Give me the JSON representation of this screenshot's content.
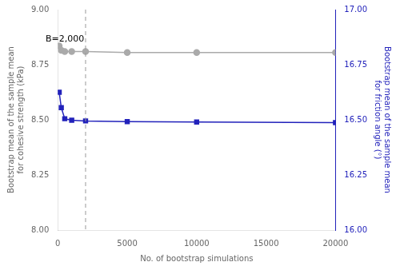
{
  "chart_data": {
    "type": "line",
    "xlabel": "No. of bootstrap simulations",
    "ylabel": "Bootstrap mean of the sample mean\nfor cohesive strength (kPa)",
    "y2label": "Bootstrap mean of the sample mean\nfor friction angle (°)",
    "x": [
      100,
      250,
      500,
      1000,
      2000,
      5000,
      10000,
      20000
    ],
    "series": [
      {
        "color": "#aaaaaa",
        "marker": "circle",
        "values": [
          8.835,
          8.815,
          8.81,
          8.81,
          8.81,
          8.805,
          8.805,
          8.805
        ]
      },
      {
        "color": "#2222bb",
        "marker": "square",
        "axis": "y2",
        "values": [
          16.625,
          16.555,
          16.505,
          16.498,
          16.495,
          16.492,
          16.49,
          16.487
        ]
      }
    ],
    "xlim": [
      0,
      20000
    ],
    "xticks": [
      0,
      5000,
      10000,
      15000,
      20000
    ],
    "ylim": [
      8.0,
      9.0
    ],
    "yticks": [
      {
        "value": 8.0,
        "label": "8.00"
      },
      {
        "value": 8.25,
        "label": "8.25"
      },
      {
        "value": 8.5,
        "label": "8.50"
      },
      {
        "value": 8.75,
        "label": "8.75"
      },
      {
        "value": 9.0,
        "label": "9.00"
      }
    ],
    "y2lim": [
      16.0,
      17.0
    ],
    "y2ticks": [
      {
        "value": 16.0,
        "label": "16.00"
      },
      {
        "value": 16.25,
        "label": "16.25"
      },
      {
        "value": 16.5,
        "label": "16.50"
      },
      {
        "value": 16.75,
        "label": "16.75"
      },
      {
        "value": 17.0,
        "label": "17.00"
      }
    ],
    "grid": false,
    "vlines": [
      {
        "x": 2000,
        "line_style": "dashed",
        "color": "#999999"
      }
    ],
    "annotations": [
      {
        "text": "B=2,000",
        "x": 1900,
        "y": 8.855
      }
    ]
  }
}
